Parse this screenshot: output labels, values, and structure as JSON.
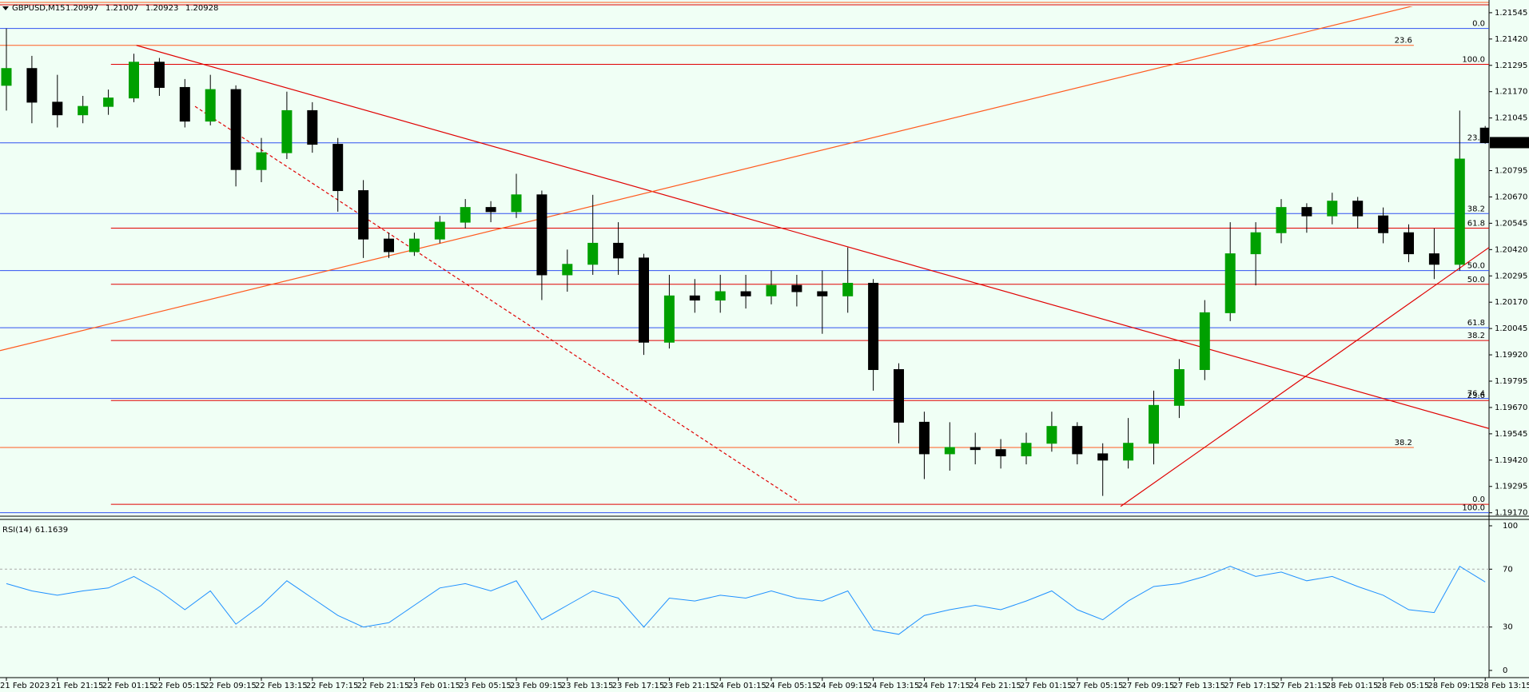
{
  "chart_data": [
    {
      "type": "candlestick",
      "title": "GBPUSD,M15",
      "header_values": [
        1.20997,
        1.21007,
        1.20923,
        1.20928
      ],
      "ohlc": [
        [
          1.212,
          1.2147,
          1.2108,
          1.2128
        ],
        [
          1.2128,
          1.2134,
          1.2102,
          1.2112
        ],
        [
          1.2112,
          1.2125,
          1.21,
          1.2106
        ],
        [
          1.2106,
          1.2115,
          1.2102,
          1.211
        ],
        [
          1.211,
          1.2118,
          1.2106,
          1.2114
        ],
        [
          1.2114,
          1.2135,
          1.2112,
          1.2131
        ],
        [
          1.2131,
          1.2133,
          1.2115,
          1.2119
        ],
        [
          1.2119,
          1.2123,
          1.21,
          1.2103
        ],
        [
          1.2103,
          1.2125,
          1.2101,
          1.2118
        ],
        [
          1.2118,
          1.212,
          1.2072,
          1.208
        ],
        [
          1.208,
          1.2095,
          1.2074,
          1.2088
        ],
        [
          1.2088,
          1.2117,
          1.2085,
          1.2108
        ],
        [
          1.2108,
          1.2112,
          1.2088,
          1.2092
        ],
        [
          1.2092,
          1.2095,
          1.206,
          1.207
        ],
        [
          1.207,
          1.2075,
          1.2038,
          1.2047
        ],
        [
          1.2047,
          1.205,
          1.2038,
          1.2041
        ],
        [
          1.2041,
          1.205,
          1.2039,
          1.2047
        ],
        [
          1.2047,
          1.2058,
          1.2045,
          1.2055
        ],
        [
          1.2055,
          1.2066,
          1.2052,
          1.2062
        ],
        [
          1.2062,
          1.2065,
          1.2055,
          1.206
        ],
        [
          1.206,
          1.2078,
          1.2057,
          1.2068
        ],
        [
          1.2068,
          1.207,
          1.2018,
          1.203
        ],
        [
          1.203,
          1.2042,
          1.2022,
          1.2035
        ],
        [
          1.2035,
          1.2068,
          1.203,
          1.2045
        ],
        [
          1.2045,
          1.2055,
          1.203,
          1.2038
        ],
        [
          1.2038,
          1.204,
          1.1992,
          1.1998
        ],
        [
          1.1998,
          1.203,
          1.1995,
          1.202
        ],
        [
          1.202,
          1.2028,
          1.2012,
          1.2018
        ],
        [
          1.2018,
          1.203,
          1.2012,
          1.2022
        ],
        [
          1.2022,
          1.203,
          1.2014,
          1.202
        ],
        [
          1.202,
          1.2032,
          1.2016,
          1.2025
        ],
        [
          1.2025,
          1.203,
          1.2015,
          1.2022
        ],
        [
          1.2022,
          1.2032,
          1.2002,
          1.202
        ],
        [
          1.202,
          1.2043,
          1.2012,
          1.2026
        ],
        [
          1.2026,
          1.2028,
          1.1975,
          1.1985
        ],
        [
          1.1985,
          1.1988,
          1.195,
          1.196
        ],
        [
          1.196,
          1.1965,
          1.1933,
          1.1945
        ],
        [
          1.1945,
          1.196,
          1.1937,
          1.1948
        ],
        [
          1.1948,
          1.1955,
          1.194,
          1.1947
        ],
        [
          1.1947,
          1.1952,
          1.1938,
          1.1944
        ],
        [
          1.1944,
          1.1955,
          1.194,
          1.195
        ],
        [
          1.195,
          1.1965,
          1.1946,
          1.1958
        ],
        [
          1.1958,
          1.196,
          1.194,
          1.1945
        ],
        [
          1.1945,
          1.195,
          1.1925,
          1.1942
        ],
        [
          1.1942,
          1.1962,
          1.1938,
          1.195
        ],
        [
          1.195,
          1.1975,
          1.194,
          1.1968
        ],
        [
          1.1968,
          1.199,
          1.1962,
          1.1985
        ],
        [
          1.1985,
          1.2018,
          1.198,
          1.2012
        ],
        [
          1.2012,
          1.2055,
          1.2008,
          1.204
        ],
        [
          1.204,
          1.2055,
          1.2025,
          1.205
        ],
        [
          1.205,
          1.2066,
          1.2045,
          1.2062
        ],
        [
          1.2062,
          1.2064,
          1.205,
          1.2058
        ],
        [
          1.2058,
          1.2069,
          1.2054,
          1.2065
        ],
        [
          1.2065,
          1.2067,
          1.2052,
          1.2058
        ],
        [
          1.2058,
          1.2062,
          1.2045,
          1.205
        ],
        [
          1.205,
          1.2054,
          1.2036,
          1.204
        ],
        [
          1.204,
          1.2052,
          1.2028,
          1.2035
        ],
        [
          1.2035,
          1.2108,
          1.2032,
          1.2085
        ],
        [
          1.20997,
          1.21007,
          1.20923,
          1.20928
        ]
      ],
      "up_color": "#00a000",
      "down_color": "#000000",
      "ylim": [
        1.19165,
        1.21575
      ],
      "yticks": [
        1.21545,
        {
          "value": 1.2142,
          "label": "1.21420"
        },
        1.21295,
        {
          "value": 1.2117,
          "label": "1.21170"
        },
        1.21045,
        1.20795,
        {
          "value": 1.2067,
          "label": "1.20670"
        },
        1.20545,
        {
          "value": 1.2042,
          "label": "1.20420"
        },
        1.20295,
        {
          "value": 1.2017,
          "label": "1.20170"
        },
        1.20045,
        {
          "value": 1.1992,
          "label": "1.19920"
        },
        1.19795,
        {
          "value": 1.1967,
          "label": "1.19670"
        },
        1.19545,
        {
          "value": 1.1942,
          "label": "1.19420"
        },
        1.19295,
        {
          "value": 1.1917,
          "label": "1.19170"
        }
      ],
      "xticks": [
        {
          "value": 0,
          "label": "21 Feb 2023"
        },
        {
          "value": 2,
          "label": "21 Feb 21:15"
        },
        {
          "value": 4,
          "label": "22 Feb 01:15"
        },
        {
          "value": 6,
          "label": "22 Feb 05:15"
        },
        {
          "value": 8,
          "label": "22 Feb 09:15"
        },
        {
          "value": 10,
          "label": "22 Feb 13:15"
        },
        {
          "value": 12,
          "label": "22 Feb 17:15"
        },
        {
          "value": 14,
          "label": "22 Feb 21:15"
        },
        {
          "value": 16,
          "label": "23 Feb 01:15"
        },
        {
          "value": 18,
          "label": "23 Feb 05:15"
        },
        {
          "value": 20,
          "label": "23 Feb 09:15"
        },
        {
          "value": 22,
          "label": "23 Feb 13:15"
        },
        {
          "value": 24,
          "label": "23 Feb 17:15"
        },
        {
          "value": 26,
          "label": "23 Feb 21:15"
        },
        {
          "value": 28,
          "label": "24 Feb 01:15"
        },
        {
          "value": 30,
          "label": "24 Feb 05:15"
        },
        {
          "value": 32,
          "label": "24 Feb 09:15"
        },
        {
          "value": 34,
          "label": "24 Feb 13:15"
        },
        {
          "value": 36,
          "label": "24 Feb 17:15"
        },
        {
          "value": 38,
          "label": "24 Feb 21:15"
        },
        {
          "value": 40,
          "label": "27 Feb 01:15"
        },
        {
          "value": 42,
          "label": "27 Feb 05:15"
        },
        {
          "value": 44,
          "label": "27 Feb 09:15"
        },
        {
          "value": 46,
          "label": "27 Feb 13:15"
        },
        {
          "value": 48,
          "label": "27 Feb 17:15"
        },
        {
          "value": 50,
          "label": "27 Feb 21:15"
        },
        {
          "value": 52,
          "label": "28 Feb 01:15"
        },
        {
          "value": 54,
          "label": "28 Feb 05:15"
        },
        {
          "value": 56,
          "label": "28 Feb 09:15"
        },
        {
          "value": 58,
          "label": "28 Feb 13:15"
        }
      ],
      "fib_sets": [
        {
          "color": "#3050f0",
          "xrange": [
            -0.25,
            58.2
          ],
          "levels": [
            {
              "value": 1.2147,
              "label": "0.0"
            },
            {
              "value": 1.20927,
              "label": "23.6"
            },
            {
              "value": 1.20591,
              "label": "38.2"
            },
            {
              "value": 1.2032,
              "label": "50.0"
            },
            {
              "value": 1.20049,
              "label": "61.8"
            },
            {
              "value": 1.19713,
              "label": "76.4"
            },
            {
              "value": 1.1917,
              "label": "100.0"
            }
          ]
        },
        {
          "color": "#e00000",
          "xrange": [
            4.1,
            58.2
          ],
          "levels": [
            {
              "value": 1.213,
              "label": "100.0"
            },
            {
              "value": 1.20522,
              "label": "61.8"
            },
            {
              "value": 1.20255,
              "label": "50.0"
            },
            {
              "value": 1.19988,
              "label": "38.2"
            },
            {
              "value": 1.19703,
              "label": "23.6"
            },
            {
              "value": 1.1921,
              "label": "0.0"
            }
          ]
        },
        {
          "color": "#ff5a1e",
          "xrange": [
            -0.25,
            55.2
          ],
          "levels": [
            {
              "value": 1.2139,
              "label": "23.6"
            },
            {
              "value": 1.1948,
              "label": "38.2"
            }
          ]
        }
      ],
      "trendlines": [
        {
          "color": "#e00000",
          "dashed": false,
          "x": [
            5.1,
            58.15
          ],
          "y": [
            1.2139,
            1.1957
          ]
        },
        {
          "color": "#e00000",
          "dashed": false,
          "x": [
            43.7,
            58.15
          ],
          "y": [
            1.192,
            1.2043
          ]
        },
        {
          "color": "#e00000",
          "dashed": true,
          "x": [
            7.4,
            31.1
          ],
          "y": [
            1.211,
            1.1922
          ]
        },
        {
          "color": "#ff5a1e",
          "dashed": false,
          "x": [
            -0.25,
            55.6
          ],
          "y": [
            1.1994,
            1.2159
          ]
        }
      ],
      "current_price": 1.20928
    },
    {
      "type": "line",
      "title": "RSI(14)",
      "current": 61.1639,
      "color": "#1e90ff",
      "values": [
        60,
        55,
        52,
        55,
        57,
        65,
        55,
        42,
        55,
        32,
        45,
        62,
        50,
        38,
        30,
        33,
        45,
        57,
        60,
        55,
        62,
        35,
        45,
        55,
        50,
        30,
        50,
        48,
        52,
        50,
        55,
        50,
        48,
        55,
        28,
        25,
        38,
        42,
        45,
        42,
        48,
        55,
        42,
        35,
        48,
        58,
        60,
        65,
        72,
        65,
        68,
        62,
        65,
        58,
        52,
        42,
        40,
        72,
        61.1639
      ],
      "ylim": [
        0,
        100
      ],
      "yticks": [
        0,
        30,
        70,
        100
      ],
      "levels": [
        30,
        70
      ]
    }
  ]
}
